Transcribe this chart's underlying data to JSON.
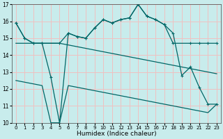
{
  "xlabel": "Humidex (Indice chaleur)",
  "bg_color": "#c8ecec",
  "grid_color": "#f0c0c0",
  "line_color": "#006666",
  "xlim": [
    -0.5,
    23.5
  ],
  "ylim": [
    10,
    17
  ],
  "xticks": [
    0,
    1,
    2,
    3,
    4,
    5,
    6,
    7,
    8,
    9,
    10,
    11,
    12,
    13,
    14,
    15,
    16,
    17,
    18,
    19,
    20,
    21,
    22,
    23
  ],
  "yticks": [
    10,
    11,
    12,
    13,
    14,
    15,
    16,
    17
  ],
  "line1_x": [
    0,
    1,
    2,
    3,
    5,
    6,
    7,
    8,
    9,
    10,
    11,
    12,
    13,
    14,
    15,
    16,
    17,
    18,
    20,
    21,
    22,
    23
  ],
  "line1_y": [
    15.9,
    15.0,
    14.7,
    14.7,
    14.7,
    15.3,
    15.1,
    15.0,
    15.6,
    16.1,
    15.9,
    16.1,
    16.2,
    17.0,
    16.3,
    16.1,
    15.8,
    14.7,
    14.7,
    14.7,
    14.7,
    14.7
  ],
  "line2_x": [
    0,
    1,
    2,
    3,
    4,
    5,
    6,
    7,
    8,
    9,
    10,
    11,
    12,
    13,
    14,
    15,
    16,
    17,
    18,
    19,
    20,
    21,
    22,
    23
  ],
  "line2_y": [
    15.9,
    15.0,
    14.7,
    14.7,
    12.7,
    10.0,
    15.3,
    15.1,
    15.0,
    15.6,
    16.1,
    15.9,
    16.1,
    16.2,
    17.0,
    16.3,
    16.1,
    15.8,
    15.3,
    12.8,
    13.3,
    12.1,
    11.1,
    11.1
  ],
  "line3_x": [
    0,
    1,
    2,
    3,
    4,
    5,
    6,
    7,
    8,
    9,
    10,
    11,
    12,
    13,
    14,
    15,
    16,
    17,
    18,
    19,
    20,
    21,
    22,
    23
  ],
  "line3_y": [
    14.7,
    14.7,
    14.7,
    14.7,
    14.7,
    14.7,
    14.6,
    14.5,
    14.4,
    14.3,
    14.2,
    14.1,
    14.0,
    13.9,
    13.8,
    13.7,
    13.6,
    13.5,
    13.4,
    13.3,
    13.2,
    13.1,
    13.0,
    12.9
  ],
  "line4_x": [
    0,
    1,
    2,
    3,
    4,
    5,
    6,
    7,
    8,
    9,
    10,
    11,
    12,
    13,
    14,
    15,
    16,
    17,
    18,
    19,
    20,
    21,
    22,
    23
  ],
  "line4_y": [
    12.5,
    12.4,
    12.3,
    12.2,
    10.0,
    10.0,
    12.2,
    12.1,
    12.0,
    11.9,
    11.8,
    11.7,
    11.6,
    11.5,
    11.4,
    11.3,
    11.2,
    11.1,
    11.0,
    10.9,
    10.8,
    10.7,
    10.6,
    11.1
  ]
}
